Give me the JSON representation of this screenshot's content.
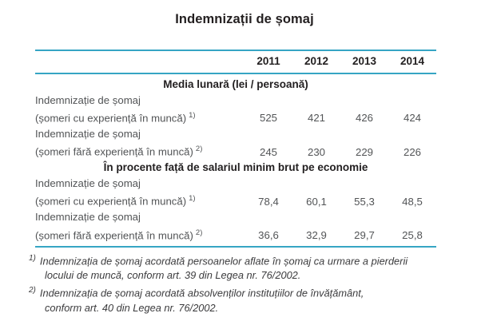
{
  "title": "Indemnizații de șomaj",
  "table": {
    "years": [
      "2011",
      "2012",
      "2013",
      "2014"
    ],
    "sections": [
      {
        "header": "Media lunară (lei / persoană)",
        "rows": [
          {
            "label_line1": "Indemnizație de șomaj",
            "label_line2": "(șomeri cu experiență în muncă)",
            "footnote_ref": "1)",
            "values": [
              "525",
              "421",
              "426",
              "424"
            ]
          },
          {
            "label_line1": "Indemnizație de șomaj",
            "label_line2": "(șomeri fără experiență în muncă)",
            "footnote_ref": "2)",
            "values": [
              "245",
              "230",
              "229",
              "226"
            ]
          }
        ]
      },
      {
        "header": "În procente față de salariul minim brut pe economie",
        "rows": [
          {
            "label_line1": "Indemnizație de șomaj",
            "label_line2": "(șomeri cu experiență în muncă)",
            "footnote_ref": "1)",
            "values": [
              "78,4",
              "60,1",
              "55,3",
              "48,5"
            ]
          },
          {
            "label_line1": "Indemnizație de șomaj",
            "label_line2": "(șomeri fără experiență în muncă)",
            "footnote_ref": "2)",
            "values": [
              "36,6",
              "32,9",
              "29,7",
              "25,8"
            ]
          }
        ]
      }
    ]
  },
  "footnotes": [
    {
      "marker": "1)",
      "line1": "Indemnizația de șomaj acordată persoanelor aflate în șomaj ca urmare a pierderii",
      "line2": "locului de muncă, conform art. 39 din Legea nr. 76/2002."
    },
    {
      "marker": "2)",
      "line1": "Indemnizația de șomaj acordată absolvenților instituțiilor de învățământ,",
      "line2": "conform art. 40 din Legea nr. 76/2002."
    }
  ],
  "colors": {
    "rule": "#36a5c4",
    "heading_text": "#232021",
    "body_text": "#525456",
    "footnote_text": "#3b3b3d"
  }
}
